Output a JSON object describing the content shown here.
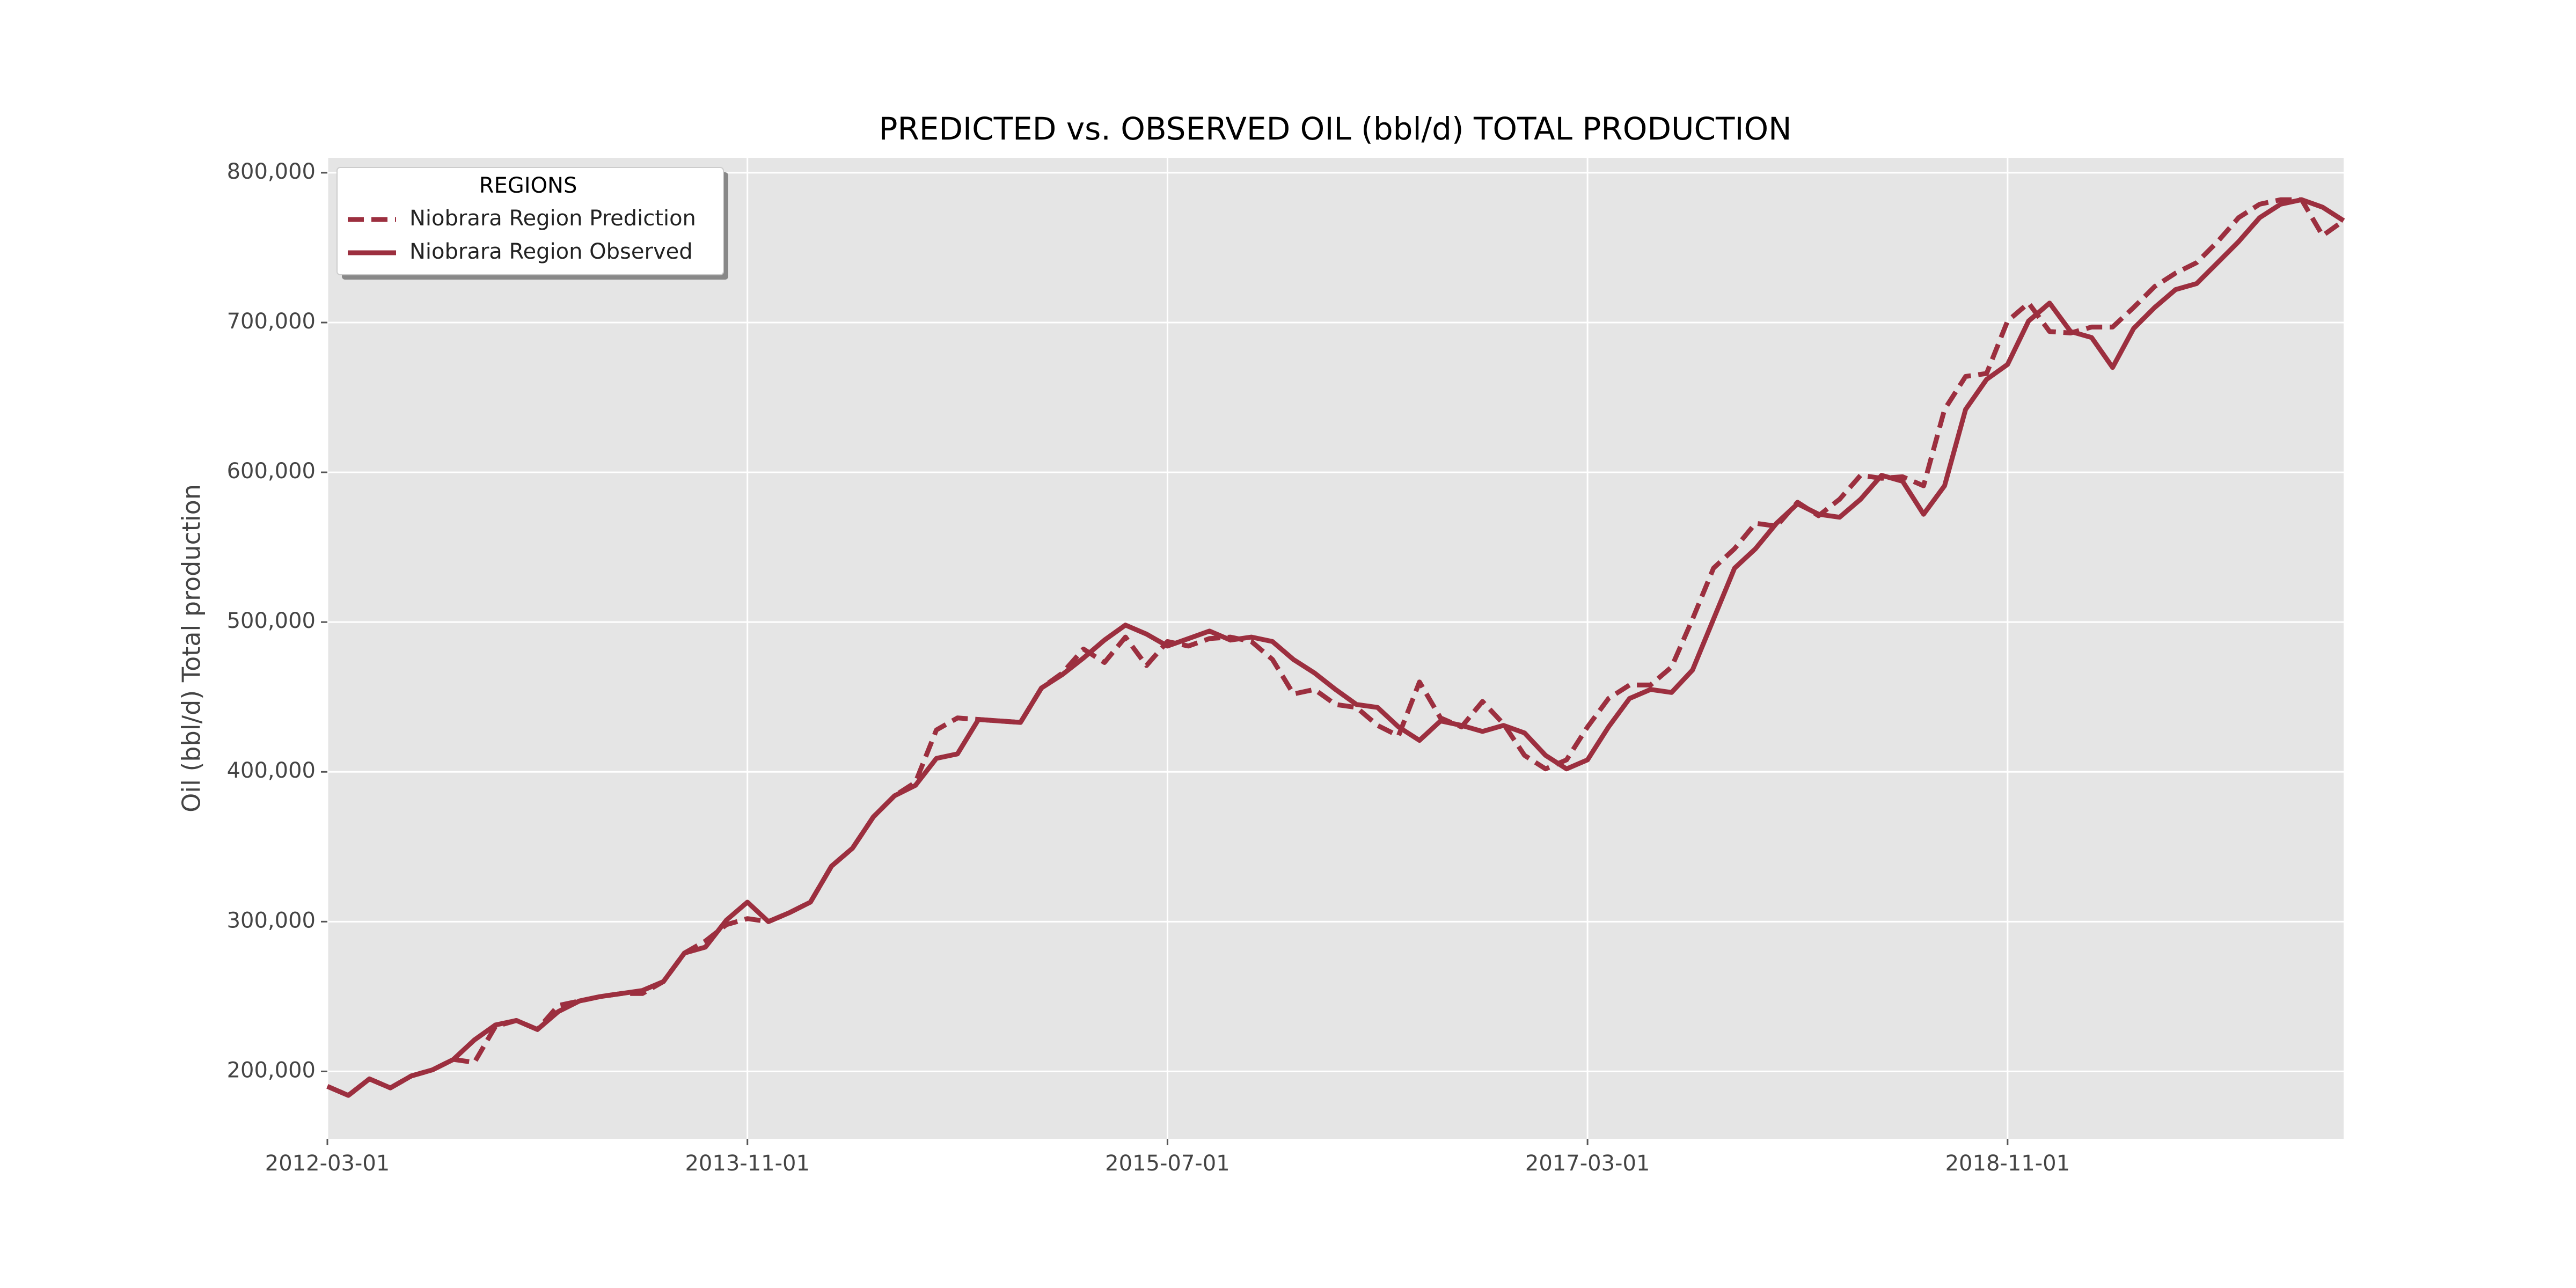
{
  "chart_data": {
    "type": "line",
    "title": "PREDICTED vs. OBSERVED OIL (bbl/d) TOTAL PRODUCTION",
    "y_label": "Oil (bbl/d) Total production",
    "legend_title": "REGIONS",
    "legend": "upper left",
    "grid": true,
    "x": [
      "2012-03-01",
      "2012-04-01",
      "2012-05-01",
      "2012-06-01",
      "2012-07-01",
      "2012-08-01",
      "2012-09-01",
      "2012-10-01",
      "2012-11-01",
      "2012-12-01",
      "2013-01-01",
      "2013-02-01",
      "2013-03-01",
      "2013-04-01",
      "2013-05-01",
      "2013-06-01",
      "2013-07-01",
      "2013-08-01",
      "2013-09-01",
      "2013-10-01",
      "2013-11-01",
      "2013-12-01",
      "2014-01-01",
      "2014-02-01",
      "2014-03-01",
      "2014-04-01",
      "2014-05-01",
      "2014-06-01",
      "2014-07-01",
      "2014-08-01",
      "2014-09-01",
      "2014-10-01",
      "2014-11-01",
      "2014-12-01",
      "2015-01-01",
      "2015-02-01",
      "2015-03-01",
      "2015-04-01",
      "2015-05-01",
      "2015-06-01",
      "2015-07-01",
      "2015-08-01",
      "2015-09-01",
      "2015-10-01",
      "2015-11-01",
      "2015-12-01",
      "2016-01-01",
      "2016-02-01",
      "2016-03-01",
      "2016-04-01",
      "2016-05-01",
      "2016-06-01",
      "2016-07-01",
      "2016-08-01",
      "2016-09-01",
      "2016-10-01",
      "2016-11-01",
      "2016-12-01",
      "2017-01-01",
      "2017-02-01",
      "2017-03-01",
      "2017-04-01",
      "2017-05-01",
      "2017-06-01",
      "2017-07-01",
      "2017-08-01",
      "2017-09-01",
      "2017-10-01",
      "2017-11-01",
      "2017-12-01",
      "2018-01-01",
      "2018-02-01",
      "2018-03-01",
      "2018-04-01",
      "2018-05-01",
      "2018-06-01",
      "2018-07-01",
      "2018-08-01",
      "2018-09-01",
      "2018-10-01",
      "2018-11-01",
      "2018-12-01",
      "2019-01-01",
      "2019-02-01",
      "2019-03-01",
      "2019-04-01",
      "2019-05-01",
      "2019-06-01",
      "2019-07-01",
      "2019-08-01",
      "2019-09-01",
      "2019-10-01",
      "2019-11-01",
      "2019-12-01",
      "2020-01-01",
      "2020-02-01",
      "2020-03-01"
    ],
    "series": [
      {
        "name": "Niobrara Region Prediction",
        "color": "#9c2f3f",
        "dash": true,
        "values": [
          190000,
          184000,
          195000,
          189000,
          197000,
          201000,
          208000,
          206000,
          230000,
          234000,
          228000,
          244000,
          247000,
          250000,
          252000,
          252000,
          260000,
          279000,
          287000,
          298000,
          302000,
          300000,
          306000,
          313000,
          337000,
          349000,
          370000,
          384000,
          393000,
          428000,
          436000,
          435000,
          434000,
          433000,
          456000,
          466000,
          482000,
          473000,
          490000,
          471000,
          487000,
          484000,
          489000,
          490000,
          487000,
          475000,
          452000,
          455000,
          445000,
          443000,
          431000,
          424000,
          460000,
          436000,
          430000,
          447000,
          432000,
          411000,
          402000,
          408000,
          430000,
          449000,
          458000,
          458000,
          470000,
          502000,
          536000,
          549000,
          566000,
          564000,
          580000,
          571000,
          582000,
          598000,
          596000,
          597000,
          591000,
          642000,
          664000,
          666000,
          701000,
          713000,
          694000,
          693000,
          697000,
          697000,
          710000,
          724000,
          733000,
          740000,
          754000,
          770000,
          779000,
          782000,
          782000,
          758000,
          768000
        ]
      },
      {
        "name": "Niobrara Region Observed",
        "color": "#9c2f3f",
        "dash": false,
        "values": [
          190000,
          184000,
          195000,
          189000,
          197000,
          201000,
          208000,
          221000,
          231000,
          234000,
          228000,
          240000,
          247000,
          250000,
          252000,
          254000,
          260000,
          279000,
          283000,
          301000,
          313000,
          300000,
          306000,
          313000,
          337000,
          349000,
          370000,
          384000,
          391000,
          409000,
          412000,
          435000,
          434000,
          433000,
          456000,
          465000,
          476000,
          488000,
          498000,
          492000,
          484000,
          489000,
          494000,
          488000,
          490000,
          487000,
          475000,
          466000,
          455000,
          445000,
          443000,
          430000,
          421000,
          434000,
          431000,
          427000,
          431000,
          426000,
          411000,
          402000,
          408000,
          430000,
          449000,
          455000,
          453000,
          468000,
          502000,
          536000,
          549000,
          566000,
          579000,
          572000,
          570000,
          582000,
          598000,
          594000,
          572000,
          591000,
          642000,
          662000,
          672000,
          701000,
          713000,
          694000,
          690000,
          670000,
          696000,
          710000,
          722000,
          726000,
          740000,
          754000,
          770000,
          779000,
          782000,
          777000,
          768000
        ]
      }
    ],
    "xlim": [
      "2012-03-01",
      "2020-03-01"
    ],
    "xticks": [
      "2012-03-01",
      "2013-11-01",
      "2015-07-01",
      "2017-03-01",
      "2018-11-01"
    ],
    "ylim": [
      155000,
      810000
    ],
    "yticks": [
      {
        "value": 200000,
        "label": "200,000"
      },
      {
        "value": 300000,
        "label": "300,000"
      },
      {
        "value": 400000,
        "label": "400,000"
      },
      {
        "value": 500000,
        "label": "500,000"
      },
      {
        "value": 600000,
        "label": "600,000"
      },
      {
        "value": 700000,
        "label": "700,000"
      },
      {
        "value": 800000,
        "label": "800,000"
      }
    ]
  }
}
